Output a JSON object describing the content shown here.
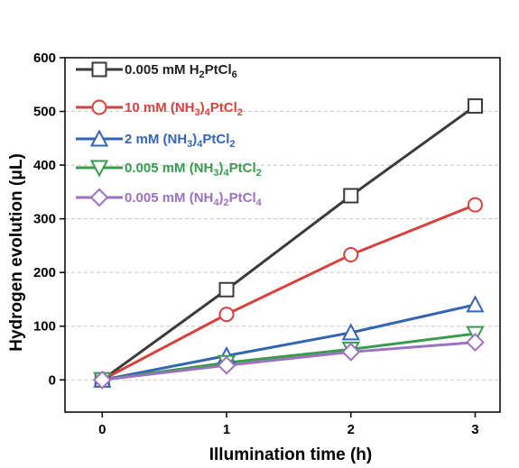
{
  "chart_data": {
    "type": "line",
    "xlabel": "Illumination time (h)",
    "ylabel": "Hydrogen evolution (μL)",
    "x": [
      0,
      1,
      2,
      3
    ],
    "xlim": [
      -0.3,
      3.2
    ],
    "ylim": [
      -60,
      600
    ],
    "xticks": [
      "0",
      "1",
      "2",
      "3"
    ],
    "yticks": [
      "0",
      "100",
      "200",
      "300",
      "400",
      "500",
      "600"
    ],
    "grid": "horizontal dashed",
    "legend_position": "top-left",
    "series": [
      {
        "name": "0.005 mM H2PtCl6",
        "name_parts": {
          "a": "0.005 mM H",
          "b": "2",
          "c": "PtCl",
          "d": "6"
        },
        "color": "#3a3a3a",
        "marker": "square",
        "values": [
          0,
          168,
          343,
          510
        ]
      },
      {
        "name": "10 mM (NH3)4PtCl2",
        "name_parts": {
          "a": "10 mM (NH",
          "b": "3",
          "c": ")",
          "d": "4",
          "e": "PtCl",
          "f": "2"
        },
        "color": "#d9413c",
        "marker": "circle",
        "values": [
          0,
          122,
          233,
          326
        ]
      },
      {
        "name": "2 mM (NH3)4PtCl2",
        "name_parts": {
          "a": "2 mM (NH",
          "b": "3",
          "c": ")",
          "d": "4",
          "e": "PtCl",
          "f": "2"
        },
        "color": "#3465b0",
        "marker": "triangle-up",
        "values": [
          0,
          45,
          88,
          140
        ]
      },
      {
        "name": "0.005 mM (NH3)4PtCl2",
        "name_parts": {
          "a": "0.005 mM (NH",
          "b": "3",
          "c": ")",
          "d": "4",
          "e": "PtCl",
          "f": "2"
        },
        "color": "#3a9a4e",
        "marker": "triangle-down",
        "values": [
          0,
          32,
          57,
          86
        ]
      },
      {
        "name": "0.005 mM (NH4)2PtCl4",
        "name_parts": {
          "a": "0.005 mM (NH",
          "b": "4",
          "c": ")",
          "d": "2",
          "e": "PtCl",
          "f": "4"
        },
        "color": "#9b72bf",
        "marker": "diamond",
        "values": [
          0,
          27,
          52,
          70
        ]
      }
    ]
  }
}
